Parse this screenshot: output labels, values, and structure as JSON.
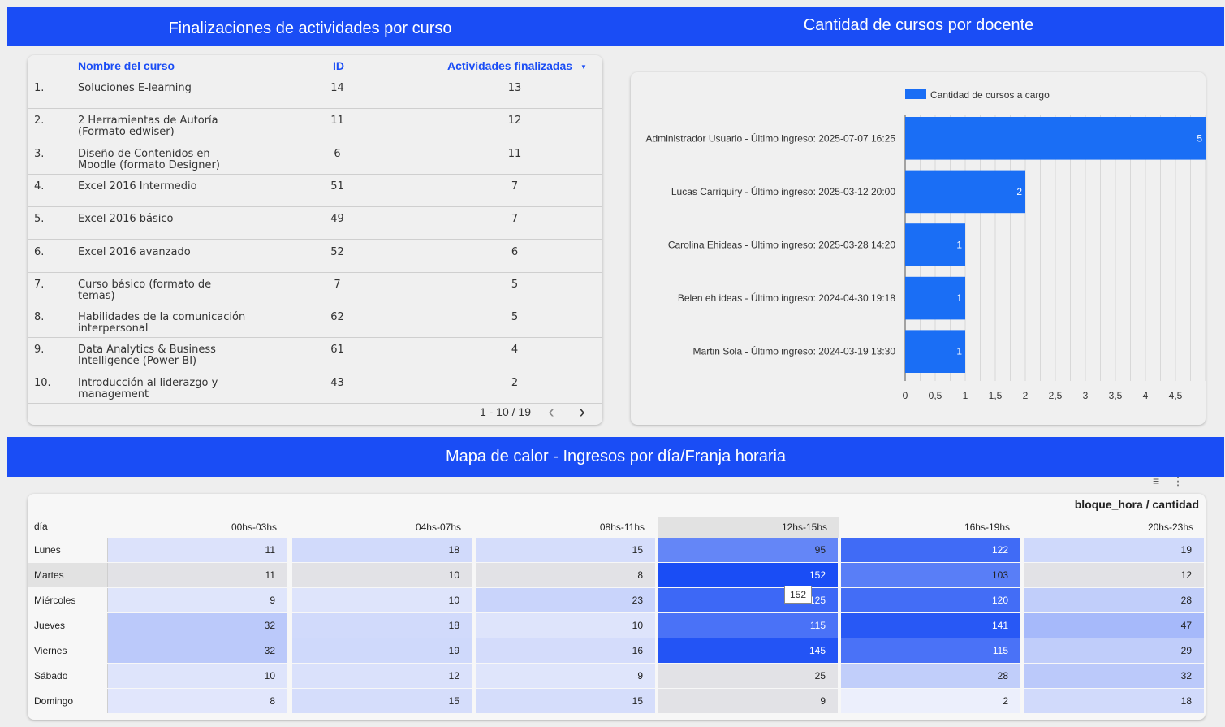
{
  "headers": {
    "courses": "Finalizaciones de actividades por curso",
    "teachers": "Cantidad de cursos por docente",
    "heatmap": "Mapa de calor - Ingresos por día/Franja horaria"
  },
  "courses_table": {
    "columns": [
      "Nombre del curso",
      "ID",
      "Actividades finalizadas"
    ],
    "sort_icon": "caret-down-icon",
    "rows": [
      {
        "num": "1.",
        "name": "Soluciones E-learning",
        "id": "14",
        "done": "13"
      },
      {
        "num": "2.",
        "name": "2 Herramientas de Autoría (Formato edwiser)",
        "id": "11",
        "done": "12"
      },
      {
        "num": "3.",
        "name": "Diseño de Contenidos en Moodle (formato Designer)",
        "id": "6",
        "done": "11"
      },
      {
        "num": "4.",
        "name": "Excel 2016 Intermedio",
        "id": "51",
        "done": "7"
      },
      {
        "num": "5.",
        "name": "Excel 2016 básico",
        "id": "49",
        "done": "7"
      },
      {
        "num": "6.",
        "name": "Excel 2016 avanzado",
        "id": "52",
        "done": "6"
      },
      {
        "num": "7.",
        "name": "Curso básico (formato de temas)",
        "id": "7",
        "done": "5"
      },
      {
        "num": "8.",
        "name": "Habilidades de la comunicación interpersonal",
        "id": "62",
        "done": "5"
      },
      {
        "num": "9.",
        "name": "Data Analytics & Business Intelligence (Power BI)",
        "id": "61",
        "done": "4"
      },
      {
        "num": "10.",
        "name": "Introducción al liderazgo y management",
        "id": "43",
        "done": "2"
      }
    ],
    "pager": "1 - 10 / 19"
  },
  "chart_data": {
    "type": "bar",
    "orientation": "horizontal",
    "categories": [
      "Administrador Usuario - Último ingreso: 2025-07-07 16:25",
      "Lucas Carriquiry - Último ingreso: 2025-03-12 20:00",
      "Carolina Ehideas - Último ingreso: 2025-03-28 14:20",
      "Belen eh ideas - Último ingreso: 2024-04-30 19:18",
      "Martin Sola - Último ingreso: 2024-03-19 13:30"
    ],
    "series": [
      {
        "name": "Cantidad de cursos a cargo",
        "values": [
          5,
          2,
          1,
          1,
          1
        ]
      }
    ],
    "xlim": [
      0,
      5
    ],
    "x_ticks": [
      "0",
      "0,5",
      "1",
      "1,5",
      "2",
      "2,5",
      "3",
      "3,5",
      "4",
      "4,5"
    ],
    "grid": true,
    "legend": "top",
    "color": "#1a6ef5"
  },
  "heatmap": {
    "title": "bloque_hora / cantidad",
    "row_header": "día",
    "columns": [
      "00hs-03hs",
      "04hs-07hs",
      "08hs-11hs",
      "12hs-15hs",
      "16hs-19hs",
      "20hs-23hs"
    ],
    "rows": [
      {
        "day": "Lunes",
        "values": [
          11,
          18,
          15,
          95,
          122,
          19
        ]
      },
      {
        "day": "Martes",
        "values": [
          11,
          10,
          8,
          152,
          103,
          12
        ]
      },
      {
        "day": "Miércoles",
        "values": [
          9,
          10,
          23,
          125,
          120,
          28
        ]
      },
      {
        "day": "Jueves",
        "values": [
          32,
          18,
          10,
          115,
          141,
          47
        ]
      },
      {
        "day": "Viernes",
        "values": [
          32,
          19,
          16,
          145,
          115,
          29
        ]
      },
      {
        "day": "Sábado",
        "values": [
          10,
          12,
          9,
          25,
          28,
          32
        ]
      },
      {
        "day": "Domingo",
        "values": [
          8,
          15,
          15,
          9,
          2,
          18
        ]
      }
    ],
    "tooltip": "152",
    "highlighted_row": "Martes",
    "highlighted_column": "12hs-15hs",
    "tool_icons": [
      "filter-icon",
      "more-vert-icon"
    ]
  }
}
